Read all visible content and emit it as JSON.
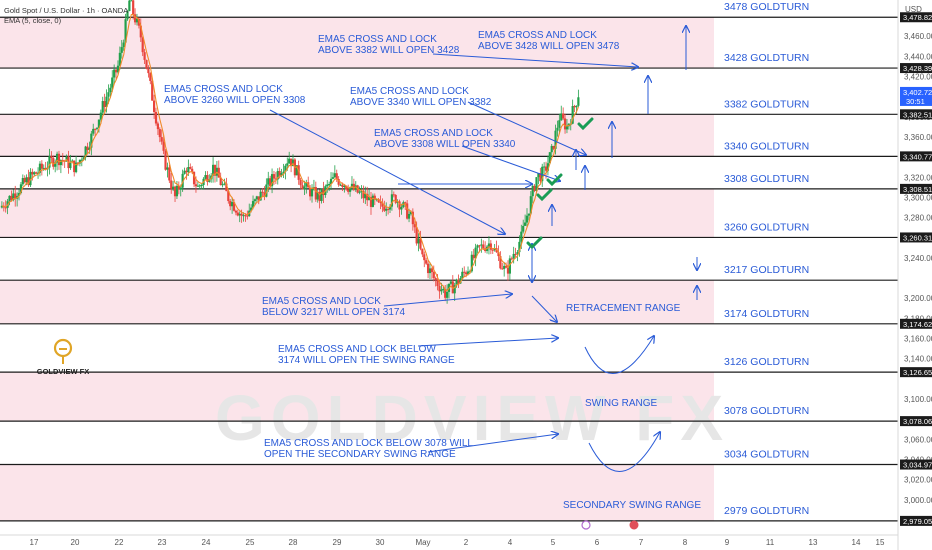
{
  "header": {
    "symbol_line": "Gold Spot / U.S. Dollar · 1h · OANDA",
    "indicator_line": "EMA (5, close, 0)",
    "currency": "USD"
  },
  "watermark": "GOLDVIEW FX",
  "logo": {
    "name": "GOLDVIEW FX"
  },
  "colors": {
    "band": "#fbe4ea",
    "up_candle": "#22a04b",
    "down_candle": "#e8433c",
    "ema": "#f08a2a",
    "annotation": "#2a5bd7",
    "check": "#1a9c55",
    "price_tag": "#1b1b1b",
    "current_tag": "#2962ff"
  },
  "chart_data": {
    "type": "candlestick",
    "x_ticks": [
      "17",
      "20",
      "22",
      "23",
      "24",
      "25",
      "28",
      "29",
      "30",
      "May",
      "2",
      "4",
      "5",
      "6",
      "7",
      "8",
      "9",
      "11",
      "13",
      "14",
      "15"
    ],
    "y_ticks": [
      3460,
      3440,
      3420,
      3380,
      3360,
      3320,
      3300,
      3280,
      3240,
      3200,
      3180,
      3160,
      3140,
      3100,
      3060,
      3040,
      3020,
      3000
    ],
    "ylim": [
      2972,
      3488
    ],
    "levels": [
      {
        "price": 3478.824,
        "tag": "3,478.824",
        "label": "3478 GOLDTURN"
      },
      {
        "price": 3428.397,
        "tag": "3,428.397",
        "label": "3428 GOLDTURN"
      },
      {
        "price": 3382.517,
        "tag": "3,382.517",
        "label": "3382 GOLDTURN"
      },
      {
        "price": 3340.771,
        "tag": "3,340.771",
        "label": "3340 GOLDTURN"
      },
      {
        "price": 3308.511,
        "tag": "3,308.511",
        "label": "3308 GOLDTURN"
      },
      {
        "price": 3260.314,
        "tag": "3,260.314",
        "label": "3260 GOLDTURN"
      },
      {
        "price": 3217.918,
        "tag": "",
        "label": "3217 GOLDTURN"
      },
      {
        "price": 3174.629,
        "tag": "3,174.629",
        "label": "3174 GOLDTURN"
      },
      {
        "price": 3126.653,
        "tag": "3,126.653",
        "label": "3126 GOLDTURN"
      },
      {
        "price": 3078.065,
        "tag": "3,078.065",
        "label": "3078 GOLDTURN"
      },
      {
        "price": 3034.978,
        "tag": "3,034.978",
        "label": "3034 GOLDTURN"
      },
      {
        "price": 2979.057,
        "tag": "2,979.057",
        "label": "2979 GOLDTURN"
      }
    ],
    "bands": [
      [
        3428.397,
        3478.824
      ],
      [
        3340.771,
        3382.517
      ],
      [
        3260.314,
        3308.511
      ],
      [
        3174.629,
        3217.918
      ],
      [
        3078.065,
        3126.653
      ],
      [
        2979.057,
        3034.978
      ]
    ],
    "current_price": {
      "value": 3402.725,
      "tag": "3,402.725",
      "countdown": "30:51"
    },
    "price_path": [
      {
        "t": 0,
        "p": 3290
      },
      {
        "t": 8,
        "p": 3320
      },
      {
        "t": 15,
        "p": 3340
      },
      {
        "t": 20,
        "p": 3330
      },
      {
        "t": 24,
        "p": 3360
      },
      {
        "t": 28,
        "p": 3400
      },
      {
        "t": 31,
        "p": 3430
      },
      {
        "t": 33,
        "p": 3470
      },
      {
        "t": 34,
        "p": 3495
      },
      {
        "t": 37,
        "p": 3460
      },
      {
        "t": 40,
        "p": 3400
      },
      {
        "t": 43,
        "p": 3340
      },
      {
        "t": 46,
        "p": 3300
      },
      {
        "t": 49,
        "p": 3330
      },
      {
        "t": 52,
        "p": 3310
      },
      {
        "t": 56,
        "p": 3330
      },
      {
        "t": 60,
        "p": 3300
      },
      {
        "t": 64,
        "p": 3280
      },
      {
        "t": 68,
        "p": 3300
      },
      {
        "t": 72,
        "p": 3320
      },
      {
        "t": 76,
        "p": 3340
      },
      {
        "t": 80,
        "p": 3310
      },
      {
        "t": 84,
        "p": 3300
      },
      {
        "t": 88,
        "p": 3320
      },
      {
        "t": 92,
        "p": 3310
      },
      {
        "t": 96,
        "p": 3300
      },
      {
        "t": 100,
        "p": 3290
      },
      {
        "t": 104,
        "p": 3300
      },
      {
        "t": 108,
        "p": 3280
      },
      {
        "t": 111,
        "p": 3240
      },
      {
        "t": 114,
        "p": 3220
      },
      {
        "t": 117,
        "p": 3205
      },
      {
        "t": 120,
        "p": 3215
      },
      {
        "t": 123,
        "p": 3230
      },
      {
        "t": 126,
        "p": 3250
      },
      {
        "t": 129,
        "p": 3255
      },
      {
        "t": 131,
        "p": 3240
      },
      {
        "t": 133,
        "p": 3225
      },
      {
        "t": 135,
        "p": 3245
      },
      {
        "t": 137,
        "p": 3260
      },
      {
        "t": 139,
        "p": 3290
      },
      {
        "t": 141,
        "p": 3320
      },
      {
        "t": 143,
        "p": 3325
      },
      {
        "t": 145,
        "p": 3345
      },
      {
        "t": 147,
        "p": 3380
      },
      {
        "t": 149,
        "p": 3370
      },
      {
        "t": 151,
        "p": 3390
      },
      {
        "t": 152,
        "p": 3403
      }
    ],
    "t_range": [
      0,
      236
    ]
  },
  "annotations": [
    {
      "line1": "EMA5 CROSS AND LOCK",
      "line2": "ABOVE 3382 WILL OPEN 3428"
    },
    {
      "line1": "EMA5 CROSS AND LOCK",
      "line2": "ABOVE 3428 WILL OPEN 3478"
    },
    {
      "line1": "EMA5 CROSS AND LOCK",
      "line2": "ABOVE 3260 WILL OPEN 3308"
    },
    {
      "line1": "EMA5 CROSS AND LOCK",
      "line2": "ABOVE 3340 WILL OPEN 3382"
    },
    {
      "line1": "EMA5 CROSS AND LOCK",
      "line2": "ABOVE 3308 WILL OPEN 3340"
    },
    {
      "line1": "EMA5 CROSS AND LOCK",
      "line2": "BELOW 3217 WILL OPEN 3174"
    },
    {
      "line1": "EMA5 CROSS AND LOCK BELOW",
      "line2": "3174 WILL OPEN THE SWING RANGE"
    },
    {
      "line1": "EMA5 CROSS AND LOCK BELOW 3078 WILL",
      "line2": "OPEN THE SECONDARY SWING RANGE"
    }
  ],
  "range_labels": {
    "retracement": "RETRACEMENT RANGE",
    "swing": "SWING RANGE",
    "secondary": "SECONDARY SWING RANGE"
  }
}
